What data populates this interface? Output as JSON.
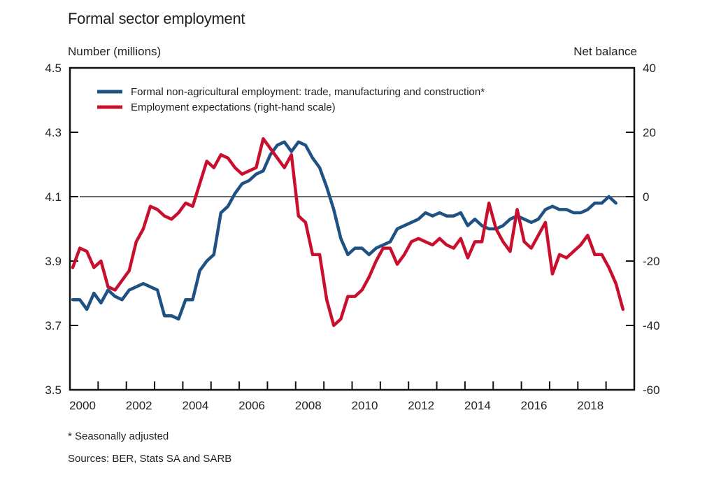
{
  "chart_data": {
    "type": "line",
    "title": "Formal sector employment",
    "ylabel_left": "Number (millions)",
    "ylabel_right": "Net balance",
    "xlabel": "",
    "xlim": [
      2000,
      2020
    ],
    "ylim_left": [
      3.5,
      4.5
    ],
    "ylim_right": [
      -60,
      40
    ],
    "yticks_left": [
      "3.5",
      "3.7",
      "3.9",
      "4.1",
      "4.3",
      "4.5"
    ],
    "yticks_left_values": [
      3.5,
      3.7,
      3.9,
      4.1,
      4.3,
      4.5
    ],
    "yticks_right": [
      "-60",
      "-40",
      "-20",
      "0",
      "20",
      "40"
    ],
    "yticks_right_values": [
      -60,
      -40,
      -20,
      0,
      20,
      40
    ],
    "xtick_labels": [
      "2000",
      "2002",
      "2004",
      "2006",
      "2008",
      "2010",
      "2012",
      "2014",
      "2016",
      "2018"
    ],
    "xtick_label_values": [
      2000,
      2002,
      2004,
      2006,
      2008,
      2010,
      2012,
      2014,
      2016,
      2018
    ],
    "reference_line_right": 0,
    "grid": false,
    "legend_position": "top-left",
    "series": [
      {
        "name": "Formal non-agricultural employment: trade, manufacturing and construction*",
        "axis": "left",
        "color": "#1f5282",
        "x": [
          2000.0,
          2000.25,
          2000.5,
          2000.75,
          2001.0,
          2001.25,
          2001.5,
          2001.75,
          2002.0,
          2002.25,
          2002.5,
          2002.75,
          2003.0,
          2003.25,
          2003.5,
          2003.75,
          2004.0,
          2004.25,
          2004.5,
          2004.75,
          2005.0,
          2005.25,
          2005.5,
          2005.75,
          2006.0,
          2006.25,
          2006.5,
          2006.75,
          2007.0,
          2007.25,
          2007.5,
          2007.75,
          2008.0,
          2008.25,
          2008.5,
          2008.75,
          2009.0,
          2009.25,
          2009.5,
          2009.75,
          2010.0,
          2010.25,
          2010.5,
          2010.75,
          2011.0,
          2011.25,
          2011.5,
          2011.75,
          2012.0,
          2012.25,
          2012.5,
          2012.75,
          2013.0,
          2013.25,
          2013.5,
          2013.75,
          2014.0,
          2014.25,
          2014.5,
          2014.75,
          2015.0,
          2015.25,
          2015.5,
          2015.75,
          2016.0,
          2016.25,
          2016.5,
          2016.75,
          2017.0,
          2017.25,
          2017.5,
          2017.75,
          2018.0,
          2018.25,
          2018.5,
          2018.75,
          2019.0,
          2019.25
        ],
        "values": [
          3.78,
          3.78,
          3.75,
          3.8,
          3.77,
          3.81,
          3.79,
          3.78,
          3.81,
          3.82,
          3.83,
          3.82,
          3.81,
          3.73,
          3.73,
          3.72,
          3.78,
          3.78,
          3.87,
          3.9,
          3.92,
          4.05,
          4.07,
          4.11,
          4.14,
          4.15,
          4.17,
          4.18,
          4.23,
          4.26,
          4.27,
          4.24,
          4.27,
          4.26,
          4.22,
          4.19,
          4.13,
          4.06,
          3.97,
          3.92,
          3.94,
          3.94,
          3.92,
          3.94,
          3.95,
          3.96,
          4.0,
          4.01,
          4.02,
          4.03,
          4.05,
          4.04,
          4.05,
          4.04,
          4.04,
          4.05,
          4.01,
          4.03,
          4.01,
          4.0,
          4.0,
          4.01,
          4.03,
          4.04,
          4.03,
          4.02,
          4.03,
          4.06,
          4.07,
          4.06,
          4.06,
          4.05,
          4.05,
          4.06,
          4.08,
          4.08,
          4.1,
          4.08
        ]
      },
      {
        "name": "Employment expectations (right-hand scale)",
        "axis": "right",
        "color": "#c8102e",
        "x": [
          2000.0,
          2000.25,
          2000.5,
          2000.75,
          2001.0,
          2001.25,
          2001.5,
          2001.75,
          2002.0,
          2002.25,
          2002.5,
          2002.75,
          2003.0,
          2003.25,
          2003.5,
          2003.75,
          2004.0,
          2004.25,
          2004.5,
          2004.75,
          2005.0,
          2005.25,
          2005.5,
          2005.75,
          2006.0,
          2006.25,
          2006.5,
          2006.75,
          2007.0,
          2007.25,
          2007.5,
          2007.75,
          2008.0,
          2008.25,
          2008.5,
          2008.75,
          2009.0,
          2009.25,
          2009.5,
          2009.75,
          2010.0,
          2010.25,
          2010.5,
          2010.75,
          2011.0,
          2011.25,
          2011.5,
          2011.75,
          2012.0,
          2012.25,
          2012.5,
          2012.75,
          2013.0,
          2013.25,
          2013.5,
          2013.75,
          2014.0,
          2014.25,
          2014.5,
          2014.75,
          2015.0,
          2015.25,
          2015.5,
          2015.75,
          2016.0,
          2016.25,
          2016.5,
          2016.75,
          2017.0,
          2017.25,
          2017.5,
          2017.75,
          2018.0,
          2018.25,
          2018.5,
          2018.75,
          2019.0,
          2019.25,
          2019.5
        ],
        "values": [
          -22,
          -16,
          -17,
          -22,
          -20,
          -28,
          -29,
          -26,
          -23,
          -14,
          -10,
          -3,
          -4,
          -6,
          -7,
          -5,
          -2,
          -3,
          4,
          11,
          9,
          13,
          12,
          9,
          7,
          8,
          9,
          18,
          15,
          12,
          9,
          13,
          -6,
          -8,
          -18,
          -18,
          -32,
          -40,
          -38,
          -31,
          -31,
          -29,
          -25,
          -20,
          -16,
          -16,
          -21,
          -18,
          -14,
          -13,
          -14,
          -15,
          -13,
          -15,
          -16,
          -13,
          -19,
          -14,
          -14,
          -2,
          -10,
          -14,
          -17,
          -4,
          -14,
          -16,
          -12,
          -8,
          -24,
          -18,
          -19,
          -17,
          -15,
          -12,
          -18,
          -18,
          -22,
          -27,
          -35
        ]
      }
    ]
  },
  "footnotes": {
    "note": "* Seasonally adjusted",
    "sources": "Sources: BER, Stats SA and SARB"
  }
}
